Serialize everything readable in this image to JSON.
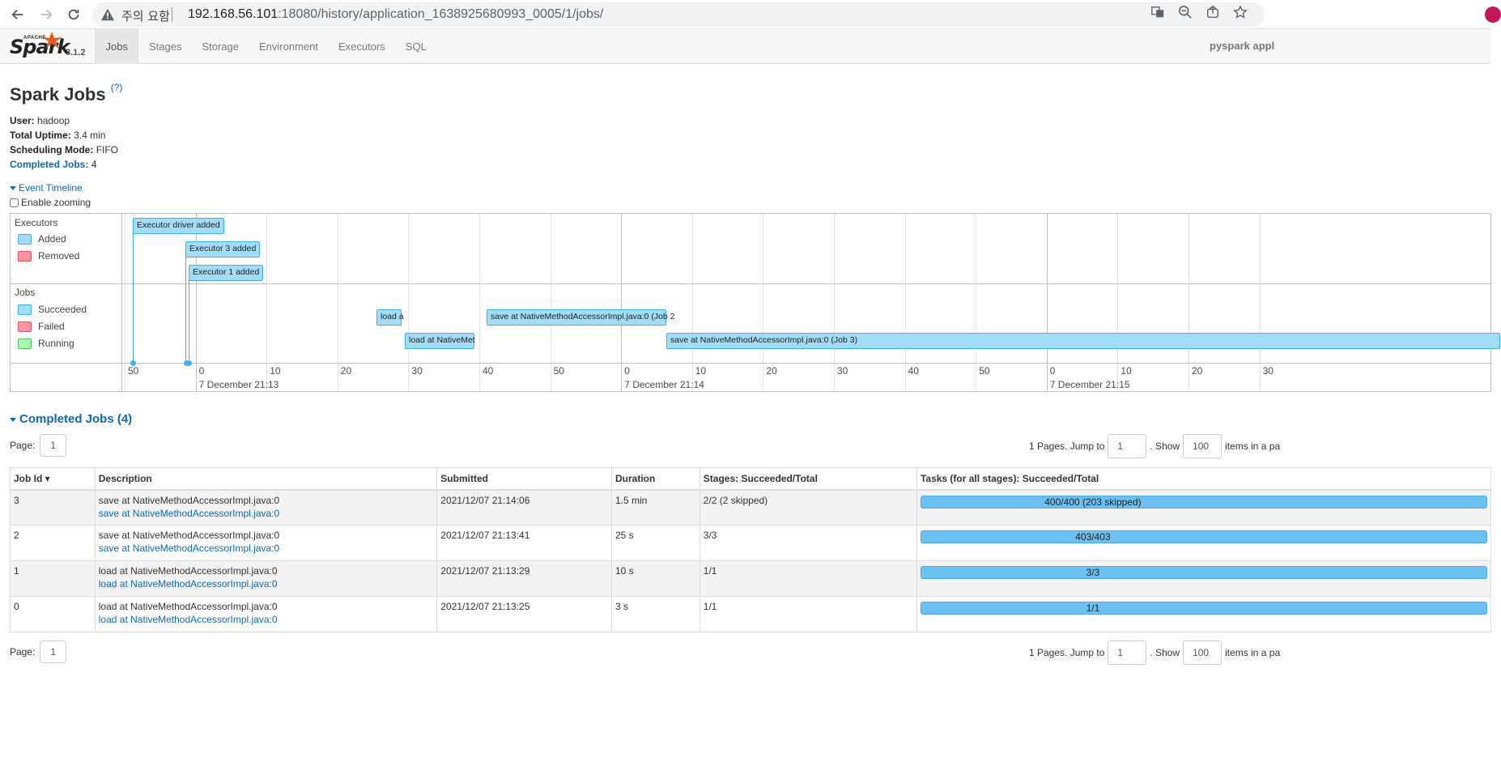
{
  "browser": {
    "warning_text": "주의 요함",
    "url_host": "192.168.56.101",
    "url_path": ":18080/history/application_1638925680993_0005/1/jobs/"
  },
  "nav": {
    "logo_apache": "APACHE",
    "logo_spark": "Spark",
    "version": "3.1.2",
    "tabs": [
      "Jobs",
      "Stages",
      "Storage",
      "Environment",
      "Executors",
      "SQL"
    ],
    "app_name": "pyspark appl"
  },
  "page": {
    "title": "Spark Jobs",
    "help": "(?)",
    "user_label": "User:",
    "user_value": "hadoop",
    "uptime_label": "Total Uptime:",
    "uptime_value": "3.4 min",
    "mode_label": "Scheduling Mode:",
    "mode_value": "FIFO",
    "completed_label": "Completed Jobs:",
    "completed_value": "4",
    "event_timeline": "Event Timeline",
    "enable_zooming": "Enable zooming"
  },
  "timeline": {
    "executors_title": "Executors",
    "jobs_title": "Jobs",
    "legend_executors": [
      "Added",
      "Removed"
    ],
    "legend_jobs": [
      "Succeeded",
      "Failed",
      "Running"
    ],
    "executor_events": [
      "Executor driver added",
      "Executor 3 added",
      "Executor 1 added"
    ],
    "job_events": [
      "load a",
      "load at NativeMet",
      "save at NativeMethodAccessorImpl.java:0 (Job 2",
      "save at NativeMethodAccessorImpl.java:0 (Job 3)"
    ],
    "tick_labels": [
      "50",
      "0",
      "10",
      "20",
      "30",
      "40",
      "50",
      "0",
      "10",
      "20",
      "30",
      "40",
      "50",
      "0",
      "10",
      "20",
      "30"
    ],
    "major_labels": [
      "7 December 21:13",
      "7 December 21:14",
      "7 December 21:15"
    ]
  },
  "colors": {
    "added": "#a2dcf6",
    "removed": "#ff94a5",
    "succeeded": "#a2dcf6",
    "failed": "#ff94a5",
    "running": "#a9f5b1",
    "link": "#0d69b4"
  },
  "completed_jobs": {
    "title": "Completed Jobs (4)",
    "page_label": "Page:",
    "page_value": "1",
    "pages_text": "1 Pages. Jump to",
    "jump_value": "1",
    "show_text": ". Show",
    "show_value": "100",
    "items_text": "items in a pa",
    "columns": [
      "Job Id ▾",
      "Description",
      "Submitted",
      "Duration",
      "Stages: Succeeded/Total",
      "Tasks (for all stages): Succeeded/Total"
    ],
    "rows": [
      {
        "id": "3",
        "desc": "save at NativeMethodAccessorImpl.java:0",
        "link": "save at NativeMethodAccessorImpl.java:0",
        "submitted": "2021/12/07 21:14:06",
        "duration": "1.5 min",
        "stages": "2/2 (2 skipped)",
        "tasks": "400/400 (203 skipped)"
      },
      {
        "id": "2",
        "desc": "save at NativeMethodAccessorImpl.java:0",
        "link": "save at NativeMethodAccessorImpl.java:0",
        "submitted": "2021/12/07 21:13:41",
        "duration": "25 s",
        "stages": "3/3",
        "tasks": "403/403"
      },
      {
        "id": "1",
        "desc": "load at NativeMethodAccessorImpl.java:0",
        "link": "load at NativeMethodAccessorImpl.java:0",
        "submitted": "2021/12/07 21:13:29",
        "duration": "10 s",
        "stages": "1/1",
        "tasks": "3/3"
      },
      {
        "id": "0",
        "desc": "load at NativeMethodAccessorImpl.java:0",
        "link": "load at NativeMethodAccessorImpl.java:0",
        "submitted": "2021/12/07 21:13:25",
        "duration": "3 s",
        "stages": "1/1",
        "tasks": "1/1"
      }
    ]
  }
}
